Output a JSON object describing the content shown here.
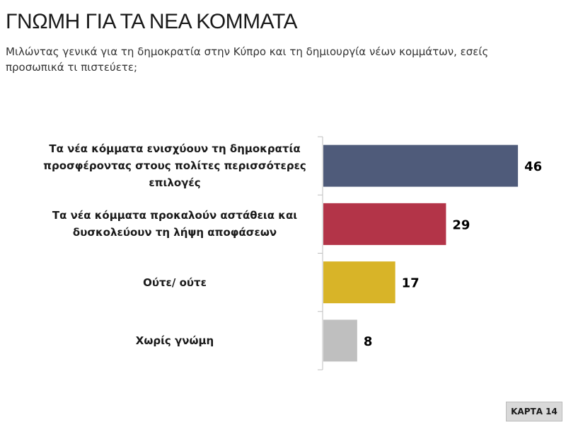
{
  "chart_data": {
    "type": "bar",
    "orientation": "horizontal",
    "title": "ΓΝΩΜΗ ΓΙΑ ΤΑ ΝΕΑ ΚΟΜΜΑΤΑ",
    "subtitle": "Μιλώντας γενικά για τη δημοκρατία στην Κύπρο και τη δημιουργία νέων κομμάτων, εσείς προσωπικά τι πιστεύετε;",
    "categories": [
      "Τα νέα κόμματα ενισχύουν τη δημοκρατία προσφέροντας στους πολίτες περισσότερες επιλογές",
      "Τα νέα κόμματα προκαλούν αστάθεια και δυσκολεύουν τη λήψη αποφάσεων",
      "Ούτε/ ούτε",
      "Χωρίς γνώμη"
    ],
    "values": [
      46,
      29,
      17,
      8
    ],
    "colors": [
      "#4f5b7a",
      "#b33448",
      "#d8b428",
      "#bfbfbf"
    ]
  },
  "footer": {
    "label": "ΚΑΡΤΑ 14"
  }
}
